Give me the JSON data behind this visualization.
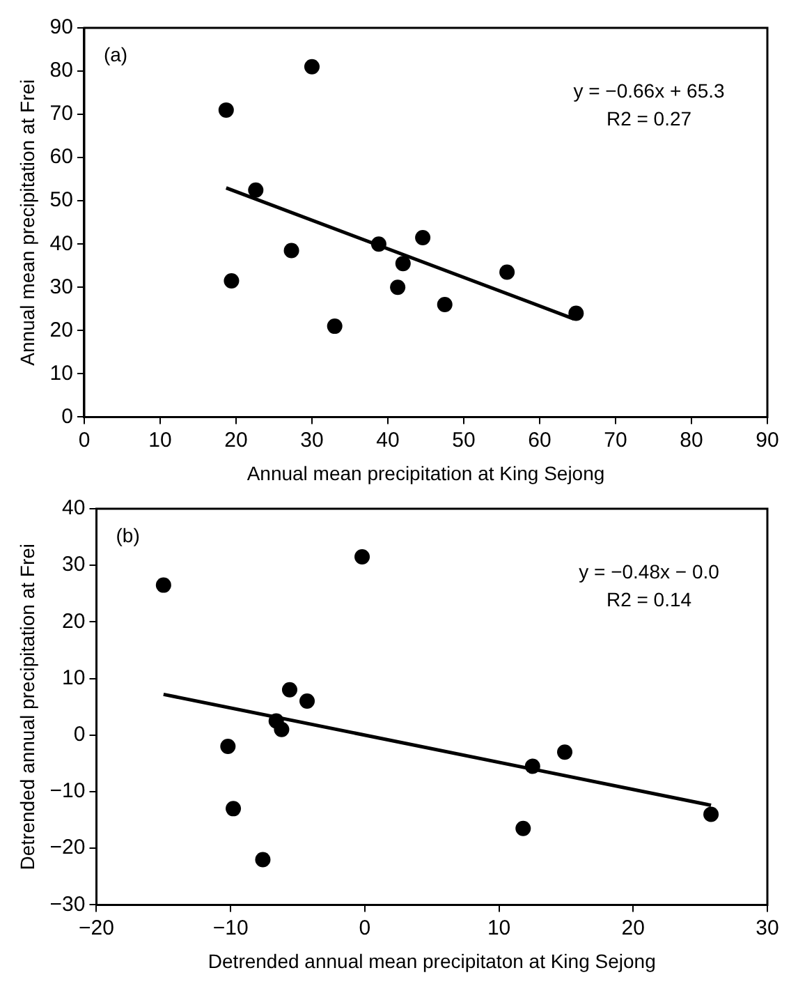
{
  "chart_data": [
    {
      "type": "scatter",
      "xlabel": "Annual mean precipitation at King Sejong",
      "ylabel": "Annual mean precipitation at Frei",
      "xlim": [
        0,
        90
      ],
      "xticks": [
        0,
        10,
        20,
        30,
        40,
        50,
        60,
        70,
        80,
        90
      ],
      "ylim": [
        0,
        90
      ],
      "yticks": [
        0,
        10,
        20,
        30,
        40,
        50,
        60,
        70,
        80,
        90
      ],
      "grid": false,
      "legend": false,
      "annotations": [
        "(a)",
        "y = −0.66x + 65.3",
        "R2 = 0.27"
      ],
      "series": [
        {
          "marker": "circle",
          "color": "#000000",
          "x": [
            18.7,
            19.4,
            22.6,
            27.3,
            30,
            33,
            38.8,
            41.3,
            42,
            44.6,
            47.5,
            55.7,
            64.8
          ],
          "values": [
            71,
            31.5,
            52.5,
            38.5,
            81,
            21,
            40,
            30,
            35.5,
            41.5,
            26,
            33.5,
            24
          ]
        },
        {
          "type": "line",
          "marker": "none",
          "color": "#000000",
          "x": [
            18.7,
            64.5
          ],
          "values": [
            53,
            22.7
          ]
        }
      ]
    },
    {
      "type": "scatter",
      "xlabel": "Detrended annual mean precipitaton at King Sejong",
      "ylabel": "Detrended annual precipitation at Frei",
      "xlim": [
        -20,
        30
      ],
      "xticks": [
        -20,
        -10,
        0,
        10,
        20,
        30
      ],
      "ylim": [
        -30,
        40
      ],
      "yticks": [
        -30,
        -20,
        -10,
        0,
        10,
        20,
        30,
        40
      ],
      "grid": false,
      "legend": false,
      "annotations": [
        "(b)",
        "y = −0.48x − 0.0",
        "R2 = 0.14"
      ],
      "series": [
        {
          "marker": "circle",
          "color": "#000000",
          "x": [
            -15,
            -10.2,
            -9.8,
            -7.6,
            -6.6,
            -6.2,
            -5.6,
            -4.3,
            -0.2,
            11.8,
            12.5,
            14.9,
            25.8
          ],
          "values": [
            26.5,
            -2,
            -13,
            -22,
            2.5,
            1,
            8,
            6,
            31.5,
            -16.5,
            -5.5,
            -3,
            -14
          ]
        },
        {
          "type": "line",
          "marker": "none",
          "color": "#000000",
          "x": [
            -15,
            25.8
          ],
          "values": [
            7.2,
            -12.4
          ]
        }
      ]
    }
  ]
}
